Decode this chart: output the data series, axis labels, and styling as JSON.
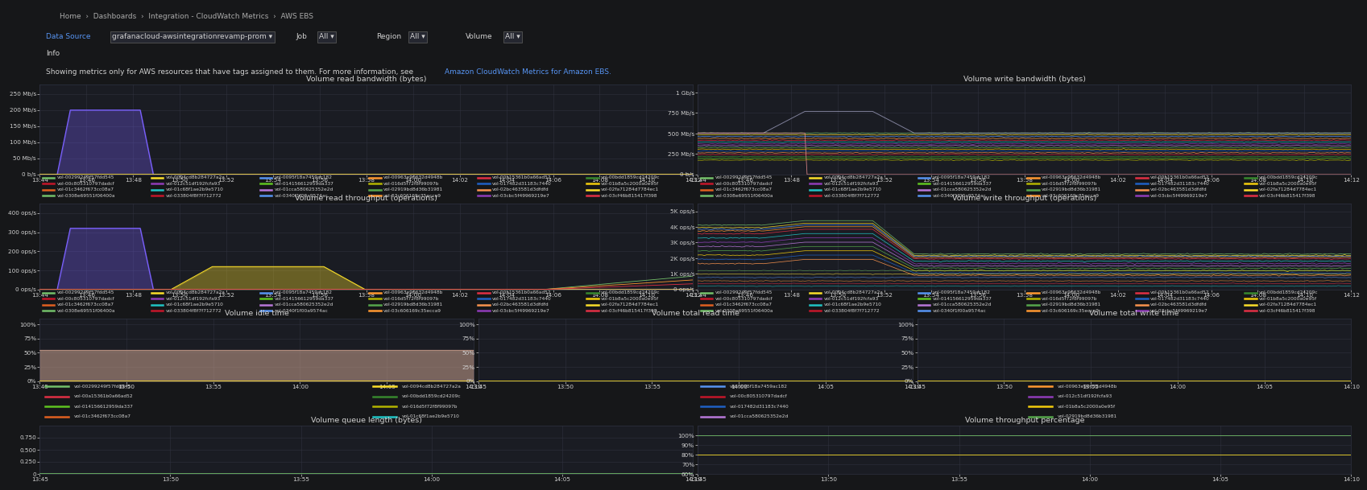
{
  "bg_color": "#161719",
  "panel_bg": "#1a1c23",
  "panel_bg2": "#181b24",
  "grid_color": "#333644",
  "text_color": "#d0d0d0",
  "title_color": "#d0d0d0",
  "link_color": "#5794f2",
  "header_bg": "#0b0c0e",
  "toolbar_bg": "#111217",
  "info_bg": "#161719",
  "nav_text": "Home  ›  Dashboards  ›  Integration - CloudWatch Metrics  ›  AWS EBS",
  "info_text": "Showing metrics only for AWS resources that have tags assigned to them. For more information, see ",
  "info_link": "Amazon CloudWatch Metrics for Amazon EBS.",
  "time_ticks_long": [
    "13:44",
    "13:46",
    "13:48",
    "13:50",
    "13:52",
    "13:54",
    "13:56",
    "13:58",
    "14:00",
    "14:02",
    "14:04",
    "14:06",
    "14:08",
    "14:10",
    "14:12"
  ],
  "time_ticks_short": [
    "13:45",
    "13:50",
    "13:55",
    "14:00",
    "14:05",
    "14:10"
  ],
  "legend_entries_row1": [
    "vol-00299249f57fdd545",
    "vol-0094cd8b284727a2a",
    "vol-0095f18a7459ac182",
    "vol-00963e90632d4948b",
    "vol-00a15361b0a66ad52",
    "vol-00bdd1859cd24209c",
    "vol-00c805310797dadcf",
    "vol-012c51df192fcfa93",
    "vol-014156612959da337",
    "vol-016d5f72f8f99097b",
    "vol-017482d31183c7440",
    "vol-01b8a5c2000a0e95f",
    "vol-01c3462f673cc08a7",
    "vol-01c68f1ae2b9e5710",
    "vol-01cca580625352e2d",
    "vol-02919bd8d36b31981",
    "vol-02bc463581d3dfdfd",
    "vol-02fa71284d7784ec1",
    "vol-0308e69551f06400a",
    "vol-033804f8f7f712772",
    "vol-0340f1f00a9574ac",
    "vol-03c606169c35ecca9",
    "vol-03cbc5f49969219e7",
    "vol-03cf46b815417f398"
  ],
  "legend_colors_row1": [
    "#73bf69",
    "#fade2a",
    "#5794f2",
    "#ff9830",
    "#e02f44",
    "#37872d",
    "#c4162a",
    "#8f3bb8",
    "#5ec420",
    "#b3b300",
    "#1f60c4",
    "#f2cc0c",
    "#e05f20",
    "#20c4c4",
    "#b877d9",
    "#56a64b",
    "#f9934e",
    "#fade2a",
    "#73bf69",
    "#c4162a",
    "#5794f2",
    "#ff9830",
    "#8f3bb8",
    "#e02f44"
  ],
  "legend_entries_idle": [
    "vol-00299249f57fdd545",
    "vol-0094cd8b284727a2a",
    "vol-0095f18a7459ac182",
    "vol-00963e90632d4948b",
    "vol-00a15361b0a66ad52",
    "vol-00bdd1859cd24209c",
    "vol-00c805310797dadcf",
    "vol-012c51df192fcfa93",
    "vol-014156612959da337",
    "vol-016d5f72f8f99097b",
    "vol-017482d31183c7440",
    "vol-01b8a5c2000a0e95f",
    "vol-01c3462f673cc08a7",
    "vol-01c68f1ae2b9e5710",
    "vol-01cca580625352e2d",
    "vol-02919bd8d36b31981"
  ],
  "legend_colors_idle": [
    "#73bf69",
    "#fade2a",
    "#5794f2",
    "#ff9830",
    "#e02f44",
    "#37872d",
    "#c4162a",
    "#8f3bb8",
    "#5ec420",
    "#b3b300",
    "#1f60c4",
    "#f2cc0c",
    "#e05f20",
    "#20c4c4",
    "#b877d9",
    "#56a64b"
  ]
}
